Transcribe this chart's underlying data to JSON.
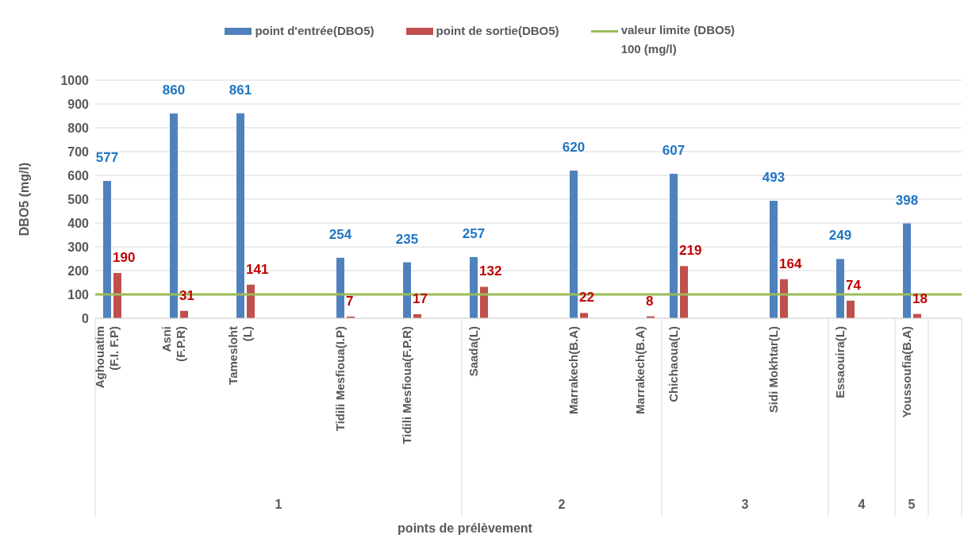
{
  "chart_data": {
    "type": "bar",
    "ylabel": "DBO5 (mg/l)",
    "categories": [
      "Aghouatim (F.I. F.P)",
      null,
      "Asni (F.P.R)",
      null,
      "Tamesloht (L)",
      null,
      null,
      "Tidili Mesfioua(I.P)",
      null,
      "Tidili Mesfioua(F.P.R)",
      null,
      "Saada(L)",
      null,
      null,
      "Marrakech(B.A)",
      null,
      "Marrakech(B.A)",
      "Chichaoua(L)",
      null,
      null,
      "Sidi Mokhtar(L)",
      null,
      "Essaouira(L)",
      null,
      "Youssoufia(B.A)",
      null
    ],
    "series": [
      {
        "name": "point d'entrée(DBO5)",
        "color": "#4f81bd",
        "values": [
          577,
          null,
          860,
          null,
          861,
          null,
          null,
          254,
          null,
          235,
          null,
          257,
          null,
          null,
          620,
          null,
          null,
          607,
          null,
          null,
          493,
          null,
          249,
          null,
          398,
          null
        ]
      },
      {
        "name": "point de sortie(DBO5)",
        "color": "#c0504d",
        "values": [
          190,
          null,
          31,
          null,
          141,
          null,
          null,
          7,
          null,
          17,
          null,
          132,
          null,
          null,
          22,
          null,
          8,
          219,
          null,
          null,
          164,
          null,
          74,
          null,
          18,
          null
        ]
      }
    ],
    "ref_lines": [
      {
        "axis": "y",
        "value": 100,
        "label": "valeur limite (DBO5) 100 (mg/l)",
        "color": "#9bbb59"
      }
    ],
    "annotations": [
      "1",
      "2",
      "3",
      "4",
      "5",
      "points de prélèvement"
    ],
    "ylim": [
      0,
      1000
    ],
    "yticks": [
      0,
      100,
      200,
      300,
      400,
      500,
      600,
      700,
      800,
      900,
      1000
    ],
    "grid": "y",
    "legend": "top",
    "data_labels": true
  }
}
